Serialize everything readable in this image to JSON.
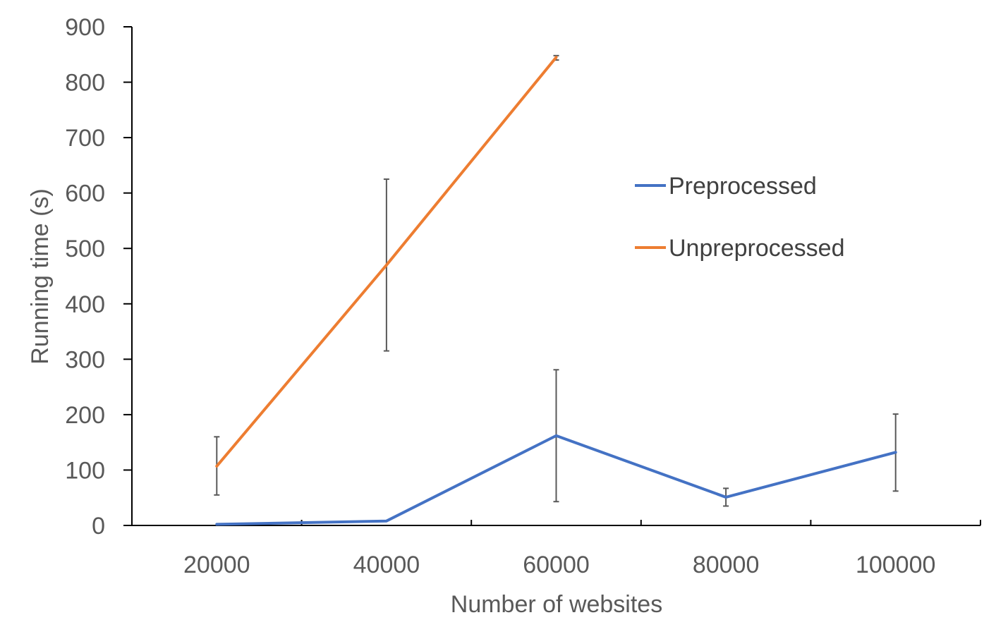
{
  "chart_data": {
    "type": "line",
    "title": "",
    "xlabel": "Number of websites",
    "ylabel": "Running time (s)",
    "categories": [
      "20000",
      "40000",
      "60000",
      "80000",
      "100000"
    ],
    "ylim": [
      0,
      900
    ],
    "yticks": [
      "0",
      "100",
      "200",
      "300",
      "400",
      "500",
      "600",
      "700",
      "800",
      "900"
    ],
    "grid": false,
    "legend_position": "right",
    "series": [
      {
        "name": "Preprocessed",
        "color": "#4472C4",
        "values": [
          2,
          8,
          162,
          51,
          132
        ],
        "error_low": [
          null,
          null,
          43,
          35,
          62
        ],
        "error_high": [
          null,
          null,
          281,
          67,
          201
        ]
      },
      {
        "name": "Unpreprocessed",
        "color": "#ED7D31",
        "values": [
          107,
          470,
          845,
          null,
          null
        ],
        "error_low": [
          55,
          315,
          840,
          null,
          null
        ],
        "error_high": [
          160,
          625,
          848,
          null,
          null
        ]
      }
    ]
  }
}
